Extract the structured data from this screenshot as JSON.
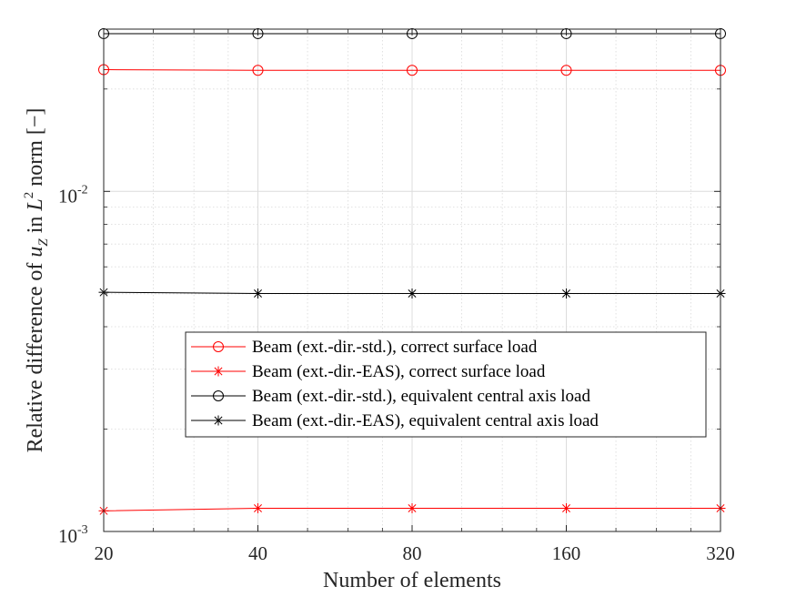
{
  "chart_data": {
    "type": "line",
    "xscale": "log2",
    "yscale": "log10",
    "x": [
      20,
      40,
      80,
      160,
      320
    ],
    "xticks": [
      "20",
      "40",
      "80",
      "160",
      "320"
    ],
    "xlim": [
      20,
      320
    ],
    "ylim": [
      0.001,
      0.03
    ],
    "yticks": [
      {
        "value": 0.001,
        "base": "10",
        "exp": "-3"
      },
      {
        "value": 0.01,
        "base": "10",
        "exp": "-2"
      }
    ],
    "xlabel": "Number of elements",
    "ylabel": {
      "prefix": "Relative difference of ",
      "var": "u",
      "sub": "Z",
      "mid": " in ",
      "norm": "L",
      "sup": "2",
      "suffix": " norm [−]"
    },
    "grid": true,
    "legend_position": "center-right",
    "series": [
      {
        "name": "Beam (ext.-dir.-std.), correct surface load",
        "color": "#ff0000",
        "marker": "circle",
        "values": [
          0.0228,
          0.0227,
          0.0227,
          0.0227,
          0.0227
        ]
      },
      {
        "name": "Beam (ext.-dir.-EAS), correct surface load",
        "color": "#ff0000",
        "marker": "asterisk",
        "values": [
          0.00115,
          0.00117,
          0.00117,
          0.00117,
          0.00117
        ]
      },
      {
        "name": "Beam (ext.-dir.-std.), equivalent central axis load",
        "color": "#000000",
        "marker": "circle",
        "values": [
          0.0291,
          0.0291,
          0.0291,
          0.0291,
          0.0291
        ]
      },
      {
        "name": "Beam (ext.-dir.-EAS), equivalent central axis load",
        "color": "#000000",
        "marker": "asterisk",
        "values": [
          0.00505,
          0.00501,
          0.00501,
          0.00501,
          0.00501
        ]
      }
    ]
  }
}
